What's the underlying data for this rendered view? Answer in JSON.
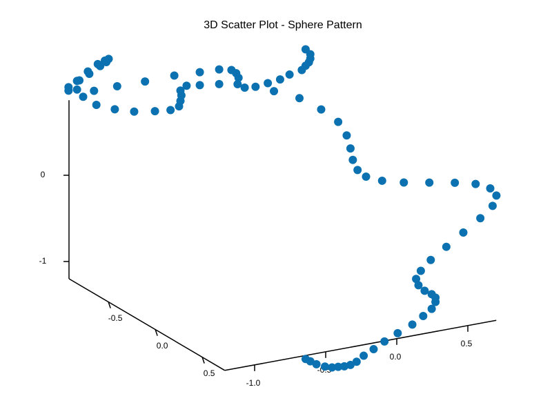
{
  "chart_data": {
    "type": "scatter3d",
    "title": "3D Scatter Plot - Sphere Pattern",
    "color": "#0c71b0",
    "x": [
      -1.22,
      -1.22,
      -1.18,
      -1.18,
      -1.17,
      -1.15,
      -1.13,
      -1.12,
      -1.1,
      -1.09,
      -1.08,
      -1.07,
      -1.05,
      -1.03,
      -1.04,
      -1.0,
      -0.99,
      -0.91,
      -0.86,
      -0.81,
      -0.74,
      -0.72,
      -0.7,
      -0.69,
      -0.69,
      -0.69,
      -0.66,
      -0.6,
      -0.6,
      -0.51,
      -0.51,
      -0.45,
      -0.43,
      -0.42,
      -0.42,
      -0.39,
      -0.34,
      -0.28,
      -0.25,
      -0.22,
      -0.18,
      -0.13,
      -0.12,
      -0.1,
      -0.09,
      -0.08,
      -0.1,
      -0.08,
      -0.03,
      0.05,
      0.09,
      0.11,
      0.12,
      0.14,
      0.18,
      0.26,
      0.36,
      0.48,
      0.6,
      0.7,
      0.77,
      0.8,
      0.78,
      0.72,
      0.64,
      0.56,
      0.49,
      0.44,
      0.42,
      0.43,
      0.46,
      0.49,
      0.51,
      0.51,
      0.49,
      0.45,
      0.4,
      0.33,
      0.27,
      0.22,
      0.17,
      0.14,
      0.11,
      0.08,
      0.05,
      0.02,
      -0.01,
      -0.05,
      -0.08,
      -0.1
    ],
    "y": [
      -0.91,
      -0.91,
      -0.88,
      -0.88,
      -0.87,
      -0.86,
      -0.84,
      -0.84,
      -0.82,
      -0.81,
      -0.81,
      -0.8,
      -0.78,
      -0.77,
      -0.78,
      -0.75,
      -0.74,
      -0.68,
      -0.64,
      -0.61,
      -0.55,
      -0.54,
      -0.52,
      -0.52,
      -0.52,
      -0.51,
      -0.5,
      -0.45,
      -0.45,
      -0.38,
      -0.38,
      -0.34,
      -0.32,
      -0.32,
      -0.31,
      -0.29,
      -0.25,
      -0.21,
      -0.19,
      -0.17,
      -0.13,
      -0.1,
      -0.09,
      -0.08,
      -0.06,
      -0.06,
      -0.08,
      -0.06,
      -0.02,
      0.04,
      0.07,
      0.08,
      0.09,
      0.11,
      0.14,
      0.19,
      0.27,
      0.36,
      0.45,
      0.52,
      0.57,
      0.59,
      0.58,
      0.54,
      0.48,
      0.42,
      0.36,
      0.33,
      0.31,
      0.32,
      0.34,
      0.37,
      0.38,
      0.38,
      0.37,
      0.34,
      0.3,
      0.25,
      0.2,
      0.16,
      0.13,
      0.1,
      0.08,
      0.06,
      0.04,
      0.02,
      -0.01,
      -0.04,
      -0.06,
      -0.08
    ],
    "z": [
      0.99,
      1.03,
      1.01,
      1.11,
      1.12,
      0.93,
      1.23,
      1.2,
      1.01,
      0.85,
      1.32,
      1.3,
      1.37,
      1.39,
      1.35,
      0.81,
      1.08,
      0.8,
      1.16,
      0.82,
      0.85,
      1.25,
      0.9,
      0.96,
      1.08,
      1.03,
      1.14,
      1.31,
      1.16,
      1.36,
      1.19,
      1.36,
      1.33,
      1.2,
      1.28,
      1.17,
      1.19,
      1.24,
      1.15,
      1.29,
      1.36,
      1.09,
      1.42,
      1.47,
      1.52,
      1.56,
      1.66,
      1.61,
      0.98,
      0.85,
      0.7,
      0.55,
      0.42,
      0.31,
      0.24,
      0.2,
      0.2,
      0.22,
      0.24,
      0.24,
      0.2,
      0.12,
      0.0,
      -0.15,
      -0.33,
      -0.51,
      -0.68,
      -0.81,
      -0.91,
      -0.98,
      -1.04,
      -1.07,
      -1.11,
      -1.16,
      -1.24,
      -1.33,
      -1.44,
      -1.55,
      -1.66,
      -1.76,
      -1.84,
      -1.92,
      -1.96,
      -1.98,
      -1.99,
      -2.0,
      -2.0,
      -1.98,
      -1.95,
      -1.93
    ],
    "xlim": [
      -1.21,
      0.7
    ],
    "ylim": [
      -0.92,
      0.74
    ],
    "zlim": [
      -1.2,
      0.87
    ],
    "xticks": [
      {
        "value": -1.0,
        "label": "-1.0"
      },
      {
        "value": -0.5,
        "label": "-0.5"
      },
      {
        "value": 0.0,
        "label": "0.0"
      },
      {
        "value": 0.5,
        "label": "0.5"
      }
    ],
    "yticks": [
      {
        "value": -0.5,
        "label": "-0.5"
      },
      {
        "value": 0.0,
        "label": "0.0"
      },
      {
        "value": 0.5,
        "label": "0.5"
      }
    ],
    "zticks": [
      -1,
      0
    ]
  }
}
